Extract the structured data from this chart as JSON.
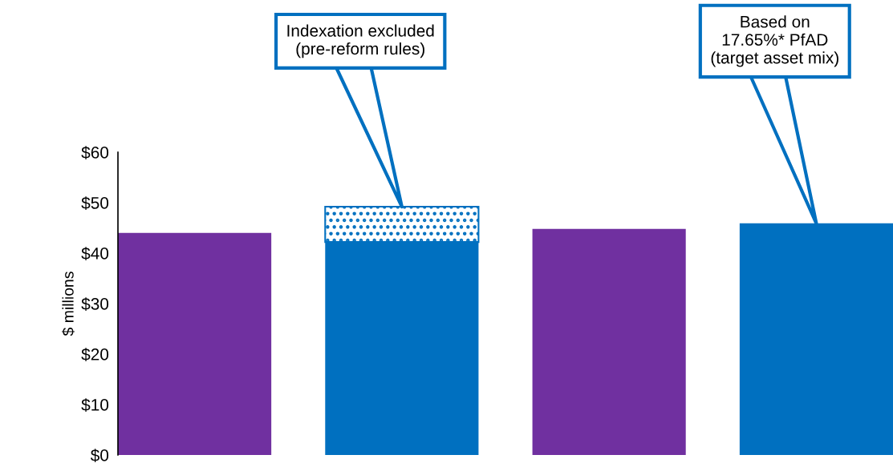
{
  "chart_data": {
    "type": "bar",
    "ylabel": "$ millions",
    "stacked": true,
    "categories": [
      null,
      null,
      null,
      null
    ],
    "series": [
      {
        "colors": [
          "#7030a0",
          "#0070c0",
          "#7030a0",
          "#0070c0"
        ],
        "values": [
          44.0,
          42.2,
          44.8,
          45.9
        ]
      },
      {
        "color": "#0070c0",
        "values": [
          null,
          7.0,
          null,
          null
        ]
      }
    ],
    "ylim": [
      0,
      60
    ],
    "yticks": [
      {
        "value": 0,
        "label": "$0"
      },
      {
        "value": 10,
        "label": "$10"
      },
      {
        "value": 20,
        "label": "$20"
      },
      {
        "value": 30,
        "label": "$30"
      },
      {
        "value": 40,
        "label": "$40"
      },
      {
        "value": 50,
        "label": "$50"
      },
      {
        "value": 60,
        "label": "$60"
      }
    ],
    "annotations": [
      "Indexation excluded\n(pre-reform rules)",
      "Based on\n17.65%* PfAD\n(target asset mix)"
    ],
    "grid": false,
    "legend": false
  }
}
